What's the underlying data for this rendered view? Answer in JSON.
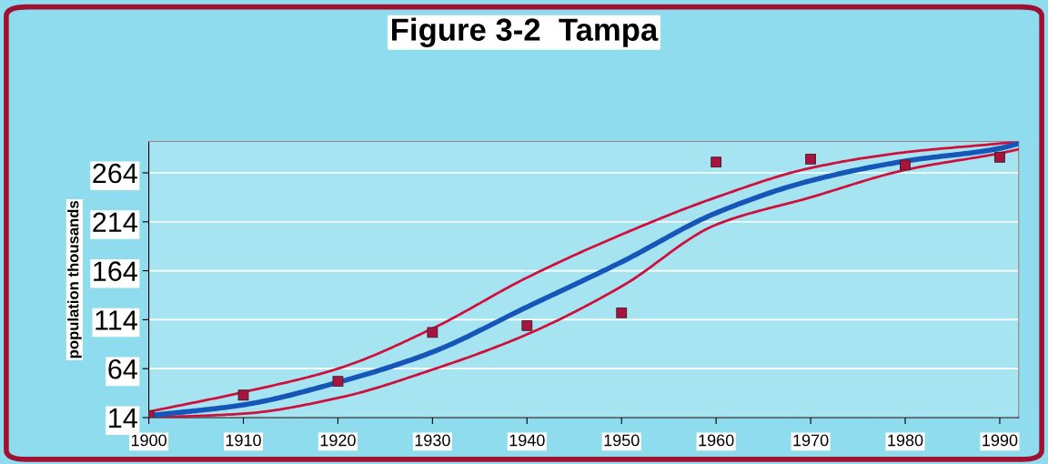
{
  "chart_data": {
    "type": "line",
    "title": "Figure 3-2  Tampa",
    "ylabel": "population thousands",
    "xlim": [
      1900,
      1992
    ],
    "ylim": [
      14,
      296
    ],
    "xticks": [
      1900,
      1910,
      1920,
      1930,
      1940,
      1950,
      1960,
      1970,
      1980,
      1990
    ],
    "yticks": [
      14,
      64,
      114,
      164,
      214,
      264
    ],
    "grid": "y",
    "legend": false,
    "series": [
      {
        "color": "#d0103c",
        "x": [
          1900,
          1910,
          1920,
          1930,
          1940,
          1950,
          1960,
          1970,
          1980,
          1990,
          1992
        ],
        "values": [
          20,
          40,
          64,
          105,
          157,
          201,
          239,
          269,
          285,
          294,
          296
        ]
      },
      {
        "color": "#d0103c",
        "x": [
          1900,
          1910,
          1920,
          1930,
          1940,
          1950,
          1960,
          1970,
          1980,
          1990,
          1992
        ],
        "values": [
          14,
          18,
          34,
          63,
          99,
          148,
          211,
          239,
          267,
          284,
          288
        ]
      },
      {
        "color": "#1656b8",
        "x": [
          1900,
          1910,
          1920,
          1930,
          1940,
          1950,
          1960,
          1970,
          1980,
          1990,
          1992
        ],
        "values": [
          16,
          27,
          50,
          81,
          127,
          173,
          223,
          256,
          276,
          289,
          294
        ]
      },
      {
        "type": "scatter",
        "color": "#a8143e",
        "marker": "square",
        "x": [
          1900,
          1910,
          1920,
          1930,
          1940,
          1950,
          1960,
          1970,
          1980,
          1990
        ],
        "values": [
          16,
          37,
          51,
          101,
          108,
          121,
          275,
          278,
          272,
          280
        ]
      }
    ]
  }
}
